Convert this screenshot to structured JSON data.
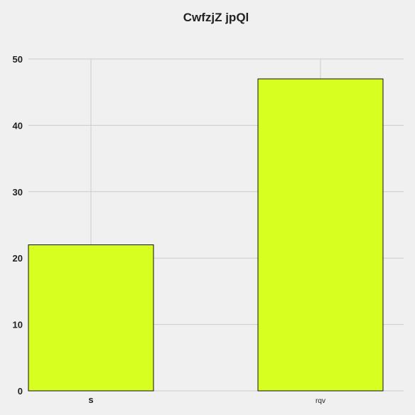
{
  "chart_data": {
    "type": "bar",
    "title": "CwfzjZ jpQl",
    "xlabel": "",
    "ylabel": "",
    "categories": [
      "s",
      "rqv"
    ],
    "values": [
      22,
      47
    ],
    "ylim": [
      0,
      50
    ],
    "yticks": [
      0,
      10,
      20,
      30,
      40,
      50
    ],
    "grid": true,
    "colors": {
      "bar": "#d7ff1f",
      "bar_edge": "#111111",
      "background": "#f0f0f0",
      "grid": "#cbcbcb"
    }
  }
}
